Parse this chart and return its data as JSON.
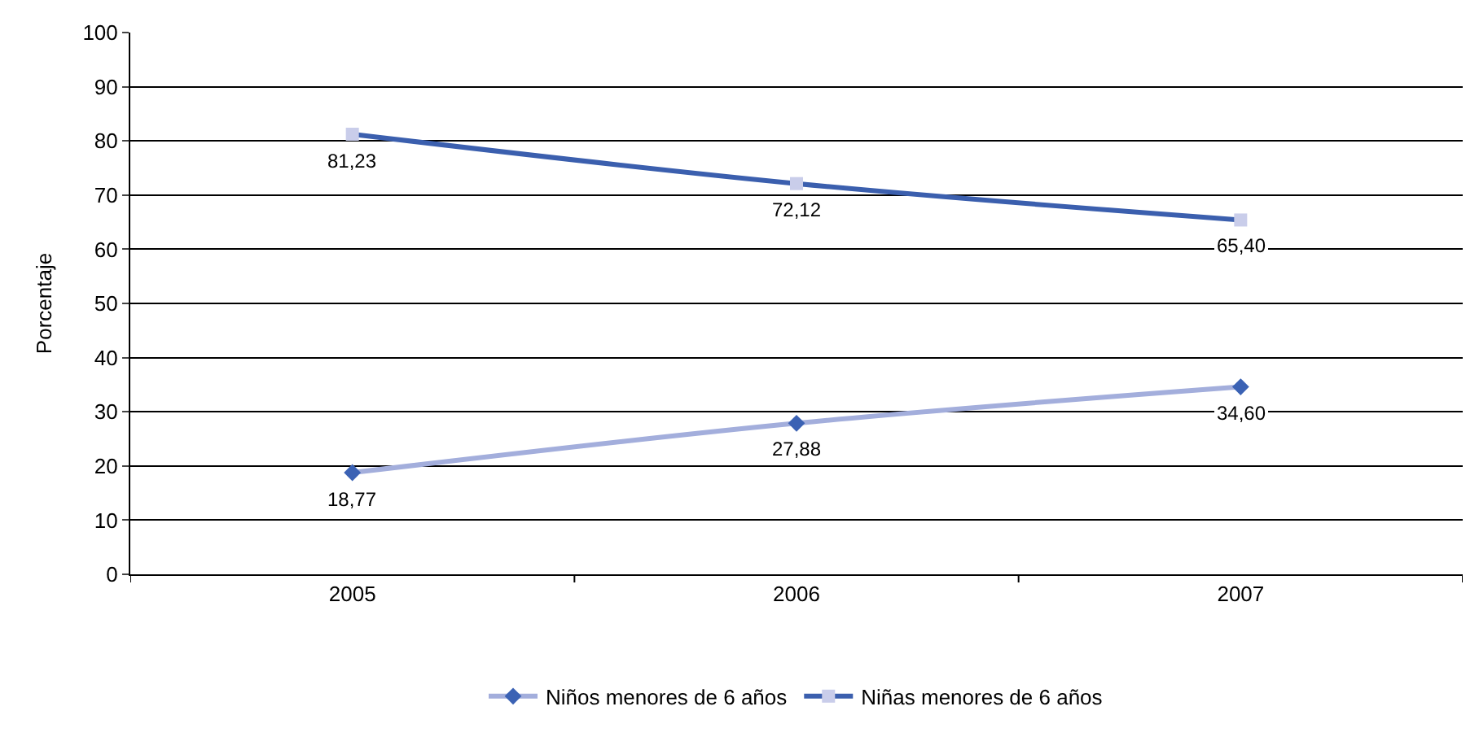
{
  "chart_data": {
    "type": "line",
    "ylabel": "Porcentaje",
    "categories": [
      "2005",
      "2006",
      "2007"
    ],
    "series": [
      {
        "name": "Niños menores de 6 años",
        "color": "#a3aedc",
        "colors": [
          "#3b62b4",
          "#3b62b4",
          "#3b62b4"
        ],
        "marker": "diamond",
        "values": [
          18.77,
          27.88,
          34.6
        ],
        "value_labels": [
          "18,77",
          "27,88",
          "34,60"
        ]
      },
      {
        "name": "Niñas menores de 6 años",
        "color": "#3b5fae",
        "colors": [
          "#c9cdea",
          "#c9cdea",
          "#c9cdea"
        ],
        "marker": "square",
        "values": [
          81.23,
          72.12,
          65.4
        ],
        "value_labels": [
          "81,23",
          "72,12",
          "65,40"
        ]
      }
    ],
    "ylim": [
      0,
      100
    ],
    "yticks": [
      0,
      10,
      20,
      30,
      40,
      50,
      60,
      70,
      80,
      90,
      100
    ],
    "grid": "y",
    "legend": "bottom",
    "line_style": "solid"
  }
}
